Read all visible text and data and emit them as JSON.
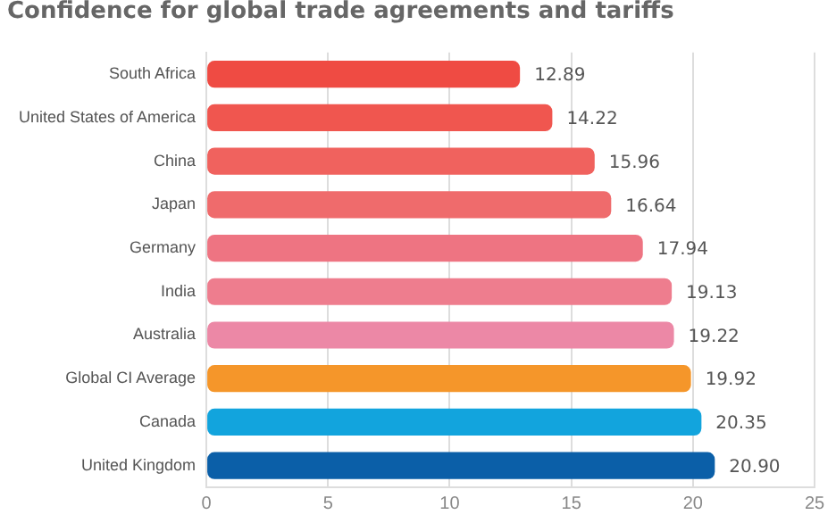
{
  "chart_data": {
    "type": "bar",
    "orientation": "horizontal",
    "title": "Confidence for global trade agreements and tariffs",
    "categories": [
      "South Africa",
      "United States of America",
      "China",
      "Japan",
      "Germany",
      "India",
      "Australia",
      "Global CI Average",
      "Canada",
      "United Kingdom"
    ],
    "values": [
      12.89,
      14.22,
      15.96,
      16.64,
      17.94,
      19.13,
      19.22,
      19.92,
      20.35,
      20.9
    ],
    "value_labels": [
      "12.89",
      "14.22",
      "15.96",
      "16.64",
      "17.94",
      "19.13",
      "19.22",
      "19.92",
      "20.35",
      "20.90"
    ],
    "colors": [
      "#ef4b43",
      "#f0564f",
      "#f0625e",
      "#ef6b6c",
      "#ee7482",
      "#ee7d8e",
      "#ec88a6",
      "#f5962a",
      "#12a4dd",
      "#0b5fa8"
    ],
    "xlim": [
      0,
      25
    ],
    "xticks": [
      0,
      5,
      10,
      15,
      20,
      25
    ],
    "grid": "x",
    "legend": false
  }
}
